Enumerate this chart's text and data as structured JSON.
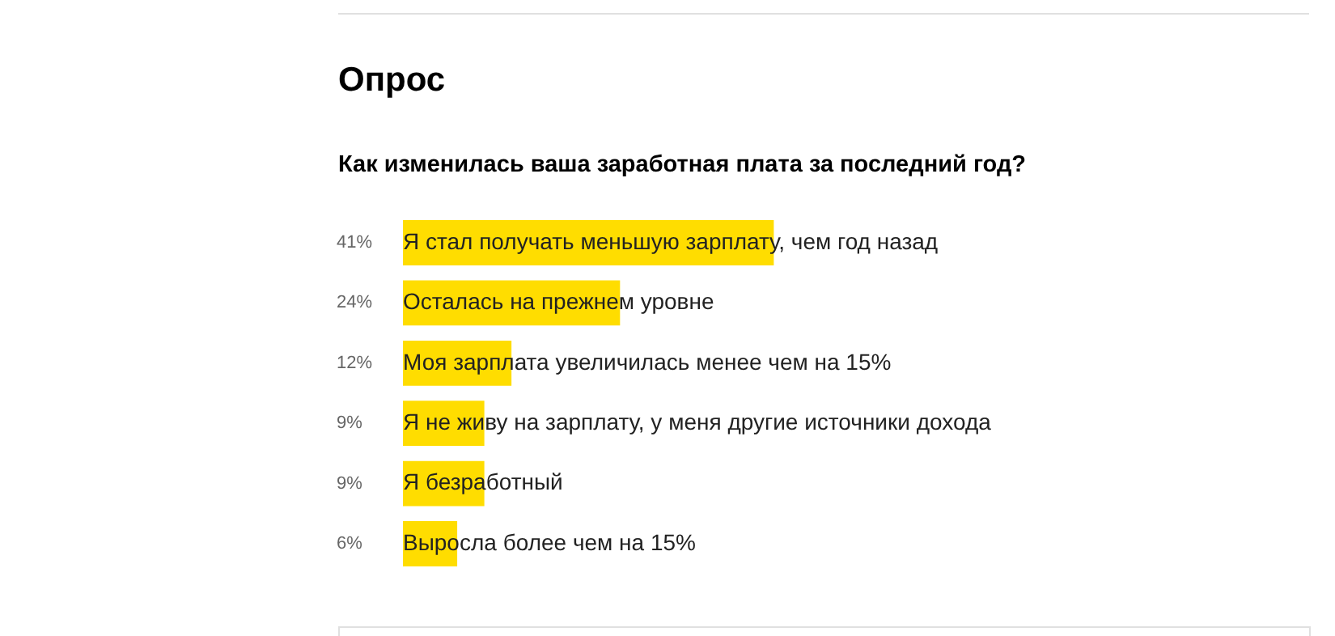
{
  "chart_data": {
    "type": "bar",
    "orientation": "horizontal",
    "title": "Опрос",
    "subtitle": "Как изменилась ваша заработная плата за последний год?",
    "categories": [
      "Я стал получать меньшую зарплату, чем год назад",
      "Осталась на прежнем уровне",
      "Моя зарплата увеличилась менее чем на 15%",
      "Я не живу на зарплату, у меня другие источники дохода",
      "Я безработный",
      "Выросла более чем на 15%"
    ],
    "values": [
      41,
      24,
      12,
      9,
      9,
      6
    ],
    "value_labels": [
      "41%",
      "24%",
      "12%",
      "9%",
      "9%",
      "6%"
    ],
    "color": "#ffdd00",
    "grid": false,
    "legend": false
  }
}
